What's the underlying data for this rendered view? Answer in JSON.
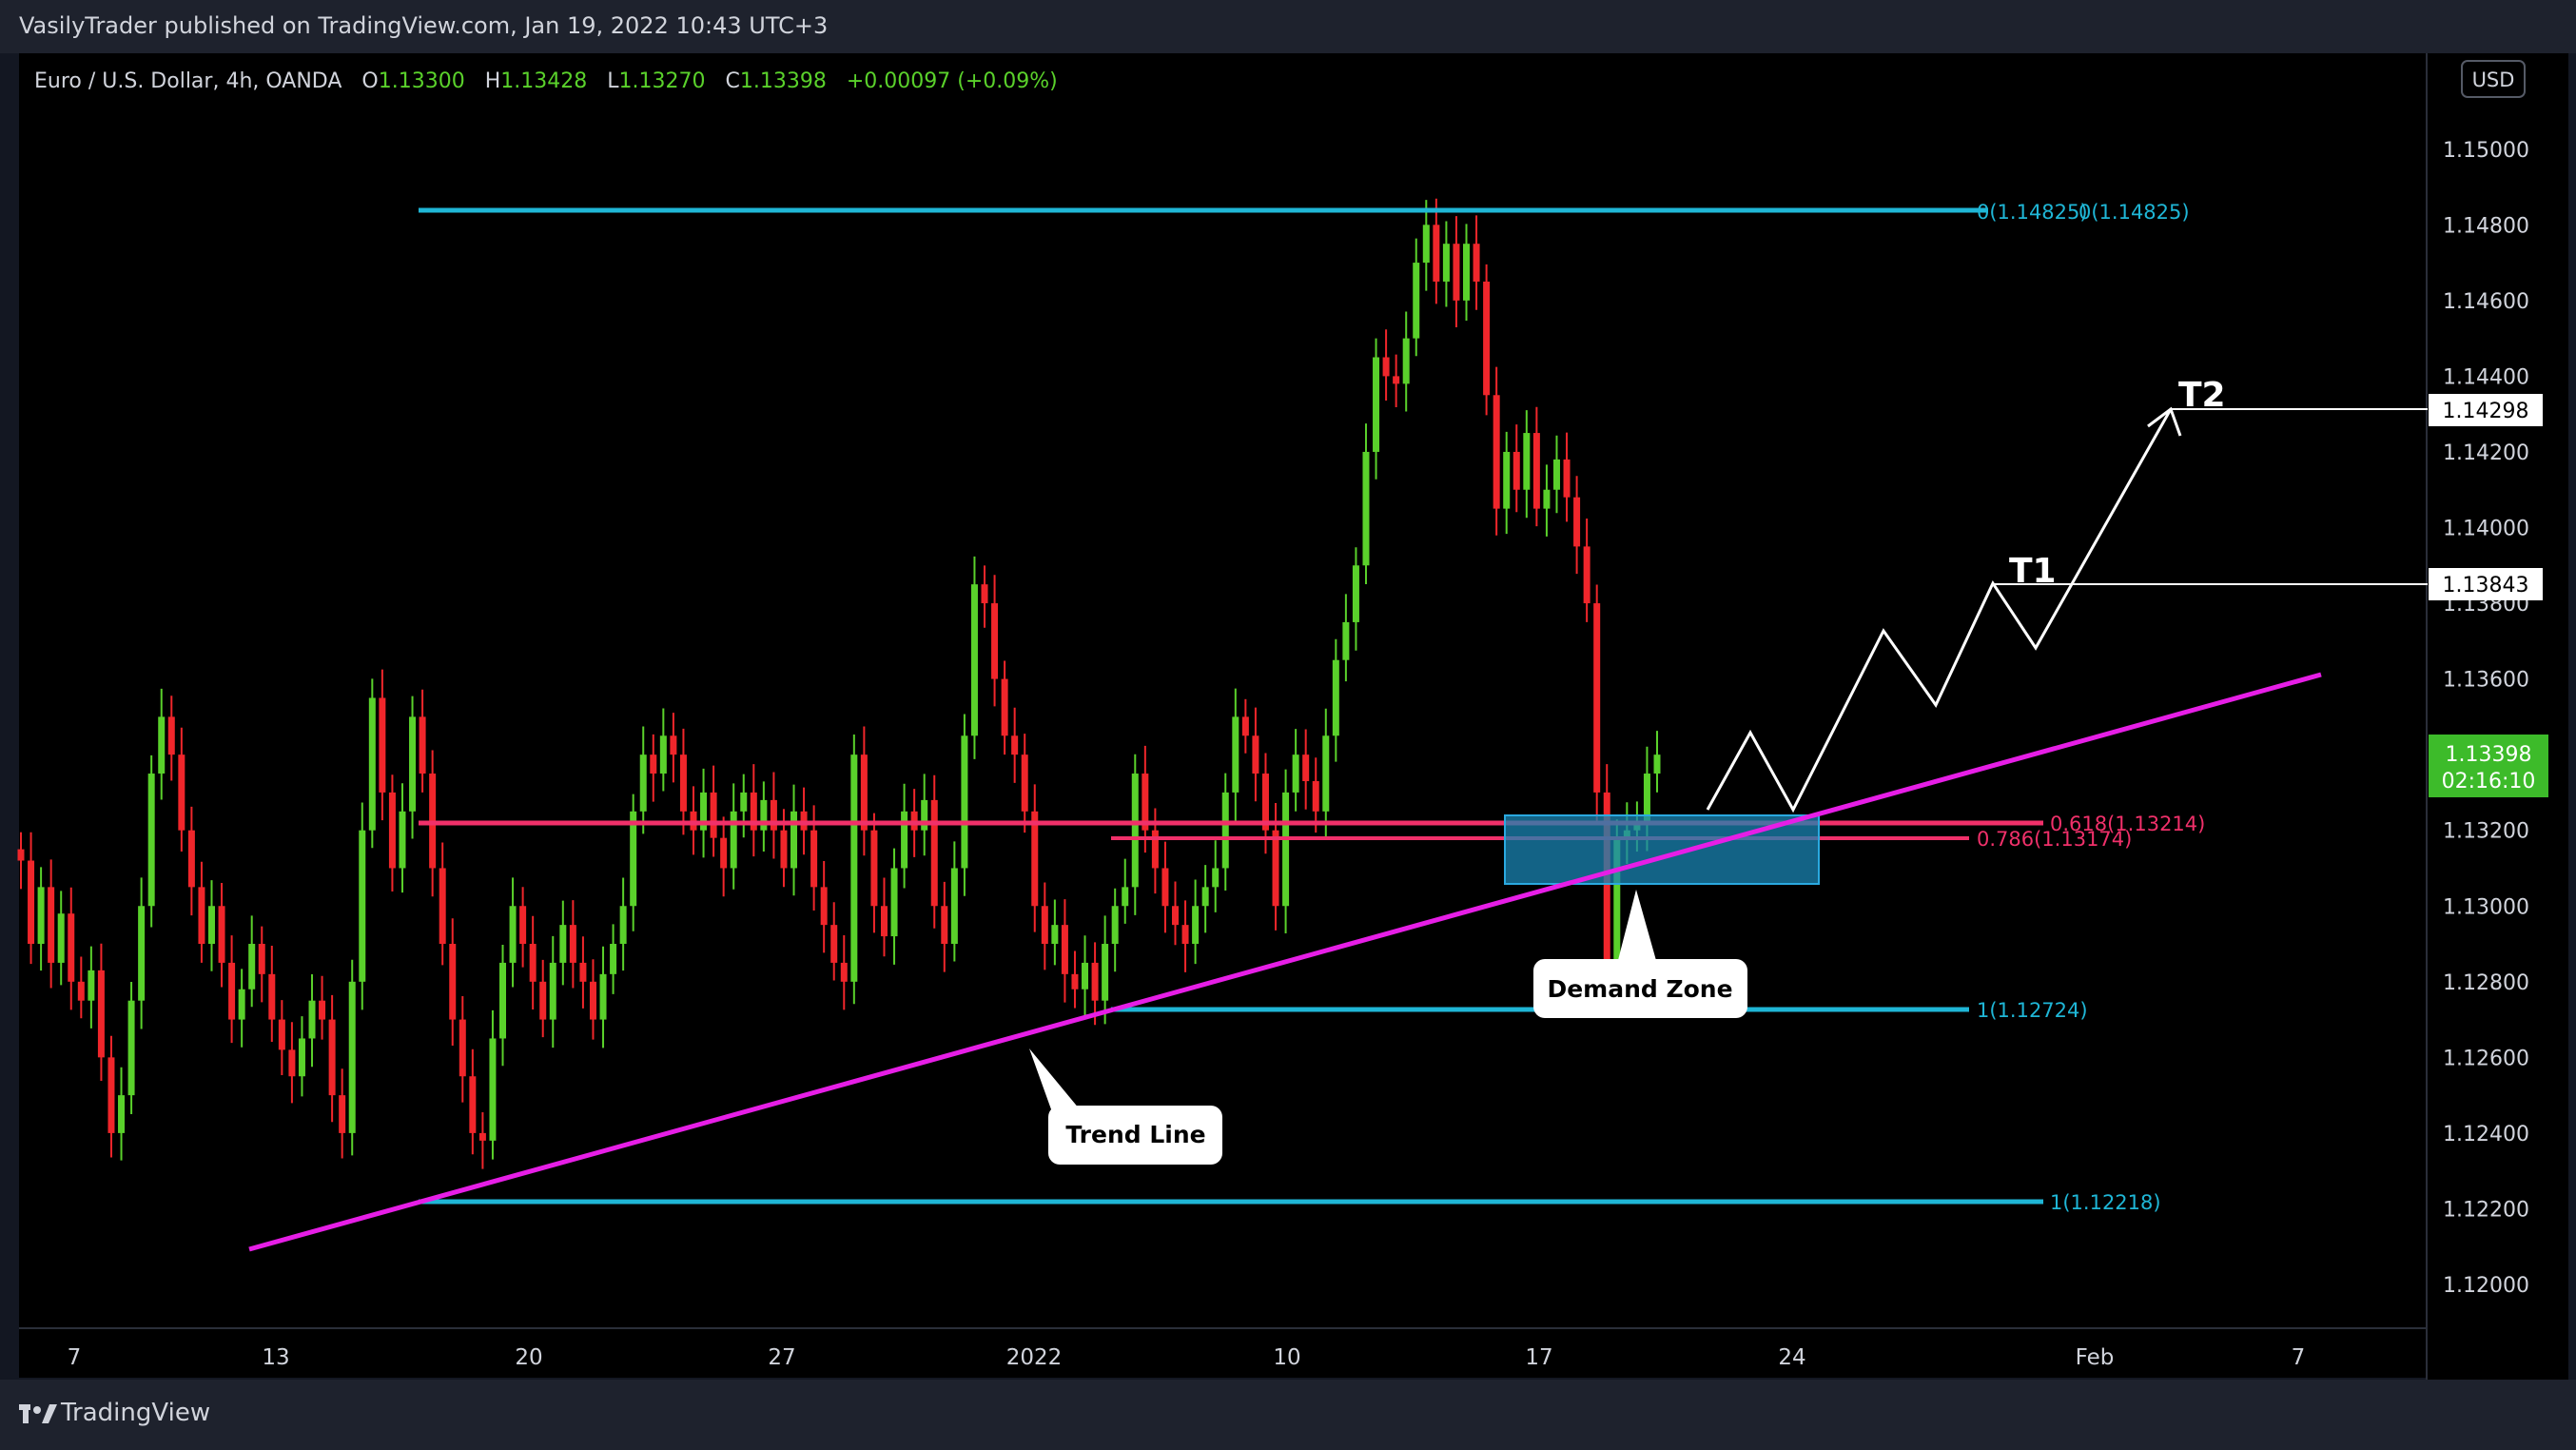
{
  "header": {
    "published_text": "VasilyTrader published on TradingView.com, Jan 19, 2022 10:43 UTC+3"
  },
  "footer": {
    "brand": "TradingView",
    "logo_icon": "tradingview-logo-icon"
  },
  "colors": {
    "background": "#000000",
    "up_candle": "#5ad12b",
    "down_candle": "#f0262b",
    "cyan_line": "#1fb6d6",
    "pink_line": "#f0306a",
    "trend_line": "#e61ee6",
    "demand_zone": "#1a84b3",
    "price_badge": "#3dbb2a"
  },
  "chart_data": {
    "type": "candlestick",
    "symbol": "Euro / U.S. Dollar, 4h, OANDA",
    "ohlc_summary": {
      "o_label": "O",
      "o_value": "1.13300",
      "h_label": "H",
      "h_value": "1.13428",
      "l_label": "L",
      "l_value": "1.13270",
      "c_label": "C",
      "c_value": "1.13398",
      "change": "+0.00097 (+0.09%)"
    },
    "currency": "USD",
    "ylim": [
      1.1189,
      1.1527
    ],
    "y_ticks": [
      "1.15000",
      "1.14800",
      "1.14600",
      "1.14400",
      "1.14200",
      "1.14000",
      "1.13800",
      "1.13600",
      "1.13200",
      "1.13000",
      "1.12800",
      "1.12600",
      "1.12400",
      "1.12200",
      "1.12000"
    ],
    "x_ticks": [
      "7",
      "13",
      "20",
      "27",
      "2022",
      "10",
      "17",
      "24",
      "Feb",
      "7"
    ],
    "current_price": "1.13398",
    "countdown": "02:16:10",
    "price_tags": [
      "1.14298",
      "1.13843"
    ],
    "levels": [
      {
        "kind": "fib",
        "label": "0(1.14825)",
        "price": 1.14825
      },
      {
        "kind": "fib",
        "label": "0.618(1.13214)",
        "price": 1.13214
      },
      {
        "kind": "fib",
        "label": "0.786(1.13174)",
        "price": 1.13174
      },
      {
        "kind": "fib",
        "label": "1(1.12724)",
        "price": 1.12724
      },
      {
        "kind": "fib",
        "label": "1(1.12218)",
        "price": 1.12218
      }
    ],
    "targets": [
      {
        "label": "T1",
        "price": 1.13843
      },
      {
        "label": "T2",
        "price": 1.14298
      }
    ],
    "trend_line": {
      "label": "Trend Line",
      "from": [
        "Dec 12",
        1.121
      ],
      "to": [
        "Feb 6",
        1.1361
      ]
    },
    "demand_zone": {
      "label": "Demand Zone",
      "top": 1.1322,
      "bottom": 1.1306
    },
    "projection_path": [
      1.1322,
      1.1345,
      1.1324,
      1.1372,
      1.1353,
      1.1385,
      1.1369,
      1.143
    ],
    "closes": [
      1.1312,
      1.129,
      1.1305,
      1.1285,
      1.1298,
      1.128,
      1.1275,
      1.1283,
      1.126,
      1.124,
      1.125,
      1.1275,
      1.13,
      1.1335,
      1.135,
      1.134,
      1.132,
      1.1305,
      1.129,
      1.13,
      1.1285,
      1.127,
      1.1278,
      1.129,
      1.1282,
      1.127,
      1.1262,
      1.1255,
      1.1265,
      1.1275,
      1.127,
      1.125,
      1.124,
      1.128,
      1.132,
      1.1355,
      1.133,
      1.131,
      1.1325,
      1.135,
      1.1335,
      1.131,
      1.129,
      1.127,
      1.1255,
      1.124,
      1.1238,
      1.1265,
      1.1285,
      1.13,
      1.129,
      1.128,
      1.127,
      1.1285,
      1.1295,
      1.1285,
      1.128,
      1.127,
      1.1282,
      1.129,
      1.13,
      1.1325,
      1.134,
      1.1335,
      1.1345,
      1.134,
      1.1325,
      1.132,
      1.133,
      1.1318,
      1.131,
      1.1325,
      1.133,
      1.132,
      1.1328,
      1.132,
      1.131,
      1.1325,
      1.132,
      1.1305,
      1.1295,
      1.1285,
      1.128,
      1.134,
      1.132,
      1.13,
      1.1292,
      1.131,
      1.1325,
      1.132,
      1.1328,
      1.13,
      1.129,
      1.131,
      1.1345,
      1.1385,
      1.138,
      1.136,
      1.1345,
      1.134,
      1.1325,
      1.13,
      1.129,
      1.1295,
      1.1282,
      1.1278,
      1.1285,
      1.1275,
      1.129,
      1.13,
      1.1305,
      1.1335,
      1.132,
      1.131,
      1.13,
      1.1295,
      1.129,
      1.13,
      1.1305,
      1.131,
      1.133,
      1.135,
      1.1345,
      1.1335,
      1.132,
      1.13,
      1.133,
      1.134,
      1.1333,
      1.1325,
      1.1345,
      1.1365,
      1.1375,
      1.139,
      1.142,
      1.1445,
      1.144,
      1.1438,
      1.145,
      1.147,
      1.148,
      1.1465,
      1.1475,
      1.146,
      1.1475,
      1.1465,
      1.1435,
      1.1405,
      1.142,
      1.141,
      1.1425,
      1.1405,
      1.141,
      1.1418,
      1.1408,
      1.1395,
      1.138,
      1.133,
      1.128,
      1.1318,
      1.132,
      1.1322,
      1.1335,
      1.134
    ]
  }
}
